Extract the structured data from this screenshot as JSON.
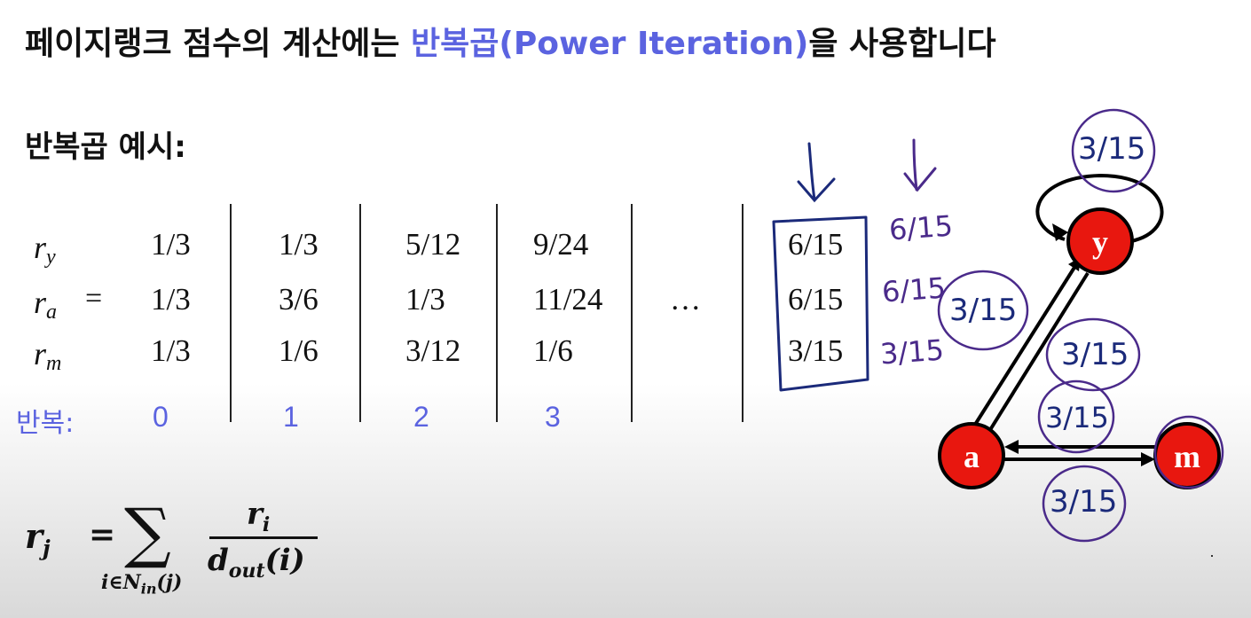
{
  "title": {
    "prefix": "페이지랭크 점수의 계산에는 ",
    "highlight": "반복곱(Power Iteration)",
    "suffix": "을 사용합니다"
  },
  "subtitle": "반복곱 예시:",
  "table": {
    "row_symbols": [
      {
        "base": "r",
        "sub": "y"
      },
      {
        "base": "r",
        "sub": "a"
      },
      {
        "base": "r",
        "sub": "m"
      }
    ],
    "equals": "=",
    "columns": [
      [
        "1/3",
        "1/3",
        "1/3"
      ],
      [
        "1/3",
        "3/6",
        "1/6"
      ],
      [
        "5/12",
        "1/3",
        "3/12"
      ],
      [
        "9/24",
        "11/24",
        "1/6"
      ]
    ],
    "ellipsis": "…",
    "final": [
      "6/15",
      "6/15",
      "3/15"
    ],
    "iteration_label": "반복:",
    "iterations": [
      "0",
      "1",
      "2",
      "3"
    ]
  },
  "annotations": {
    "handwritten_values": [
      "6/15",
      "6/15",
      "3/15"
    ],
    "edge_values": [
      "3/15",
      "3/15",
      "3/15",
      "3/15",
      "3/15"
    ]
  },
  "formula": {
    "lhs": "r",
    "lhs_sub": "j",
    "equals": "=",
    "sum_symbol": "∑",
    "sum_sub": "i∈N",
    "sum_sub_sub": "in",
    "sum_sub_arg": "(j)",
    "numerator": "r",
    "numerator_sub": "i",
    "denominator": "d",
    "denominator_sub": "out",
    "denominator_arg": "(i)"
  },
  "graph": {
    "nodes": [
      "y",
      "a",
      "m"
    ],
    "node_color": "#e8170f",
    "annotation_color": "#4a2a8a",
    "ink_color": "#1b2a7a",
    "accent_color": "#5b63e0"
  }
}
